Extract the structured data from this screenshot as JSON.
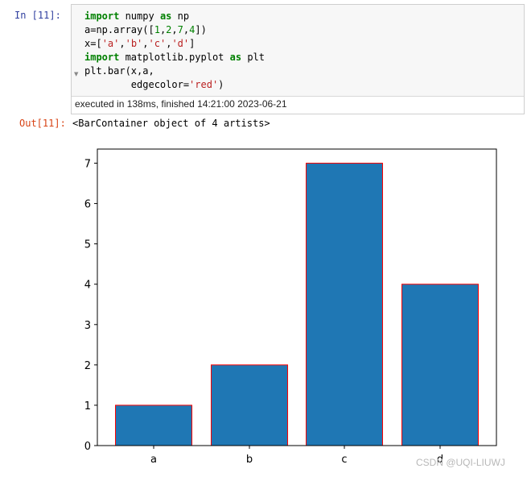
{
  "cell": {
    "in_prompt": "In  [11]:",
    "out_prompt": "Out[11]:",
    "exec_info": "executed in 138ms, finished 14:21:00 2023-06-21",
    "output_text": "<BarContainer object of 4 artists>"
  },
  "colors": {
    "bar_fill": "#1f77b4",
    "bar_edge": "#ff0000",
    "keyword": "#008000",
    "string": "#ba2121",
    "in_prompt": "#303f9f",
    "out_prompt": "#d84315"
  },
  "chart_data": {
    "type": "bar",
    "categories": [
      "a",
      "b",
      "c",
      "d"
    ],
    "values": [
      1,
      2,
      7,
      4
    ],
    "title": "",
    "xlabel": "",
    "ylabel": "",
    "ylim": [
      0,
      7.35
    ],
    "yticks": [
      0,
      1,
      2,
      3,
      4,
      5,
      6,
      7
    ],
    "grid": false
  },
  "watermark": "CSDN @UQI-LIUWJ"
}
